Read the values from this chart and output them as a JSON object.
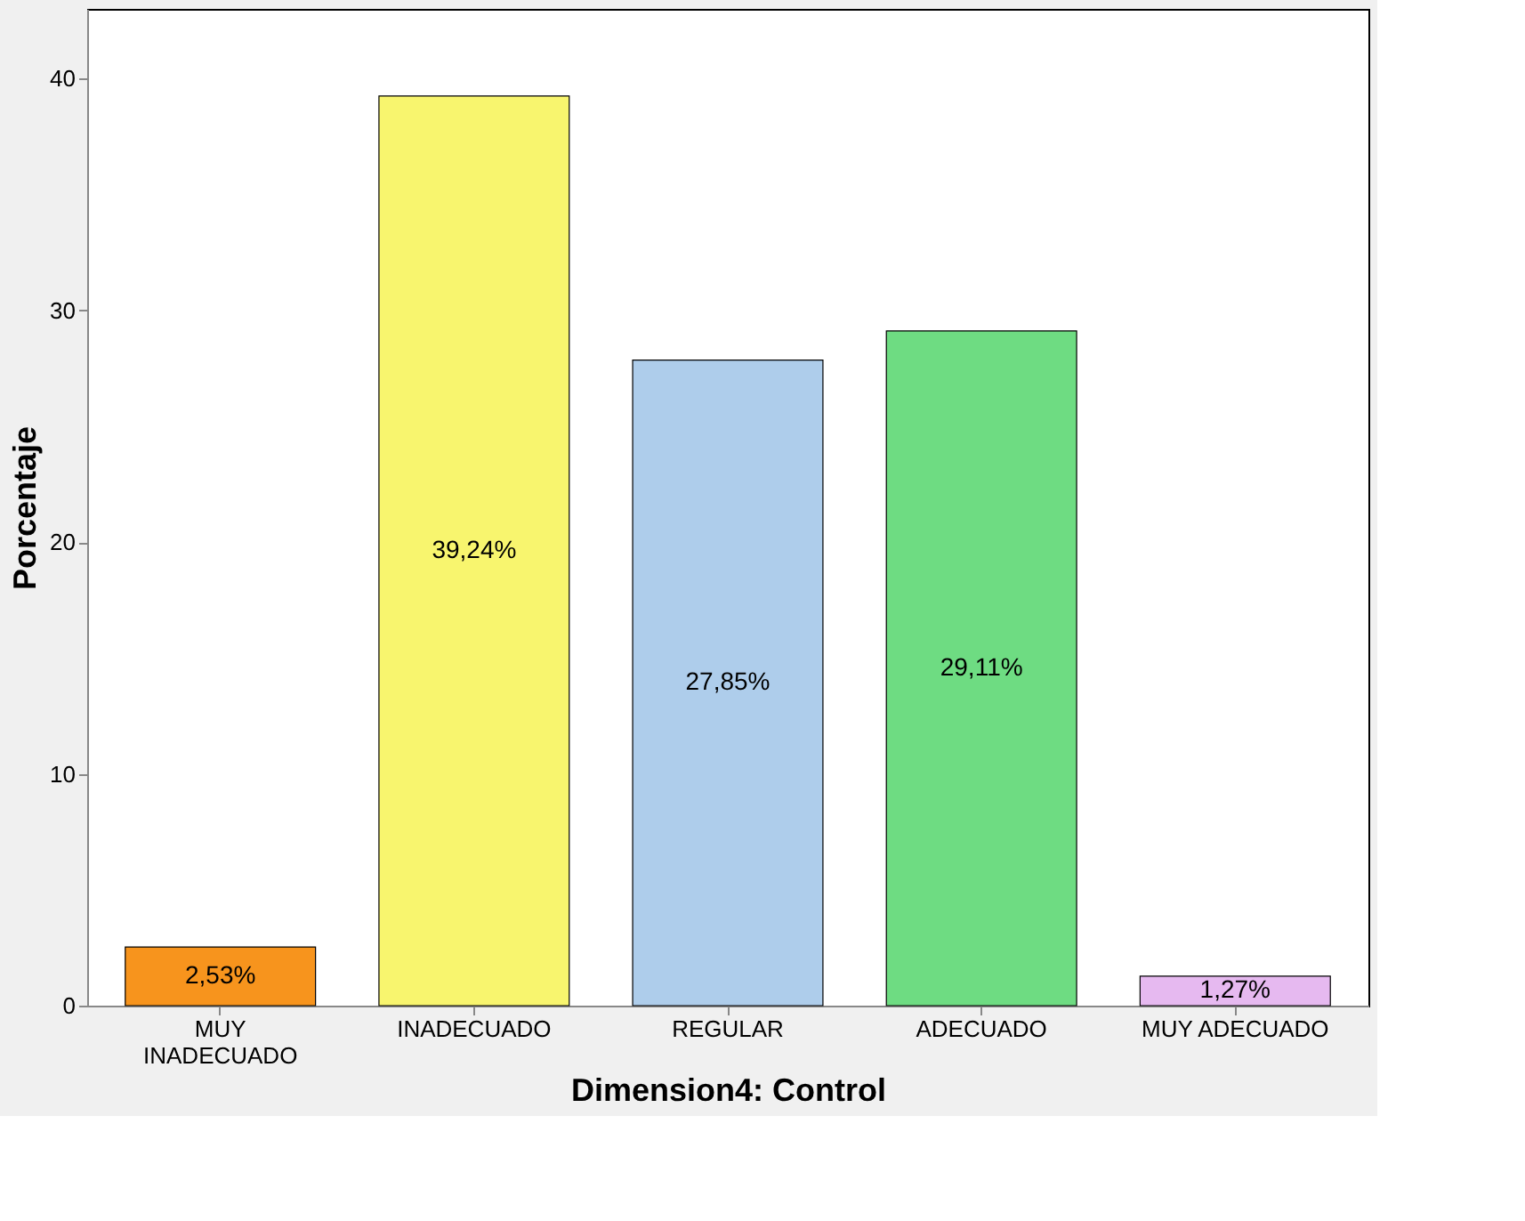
{
  "chart_data": {
    "type": "bar",
    "xlabel": "Dimension4: Control",
    "ylabel": "Porcentaje",
    "categories": [
      "MUY INADECUADO",
      "INADECUADO",
      "REGULAR",
      "ADECUADO",
      "MUY ADECUADO"
    ],
    "values": [
      2.53,
      39.24,
      27.85,
      29.11,
      1.27
    ],
    "colors": [
      "#f7941d",
      "#f8f56e",
      "#aecdeb",
      "#6edc82",
      "#e6b9f0"
    ],
    "value_labels": [
      "2,53%",
      "39,24%",
      "27,85%",
      "29,11%",
      "1,27%"
    ],
    "ylim": [
      0,
      43
    ],
    "yticks": [
      0,
      10,
      20,
      30,
      40
    ],
    "grid": false
  }
}
